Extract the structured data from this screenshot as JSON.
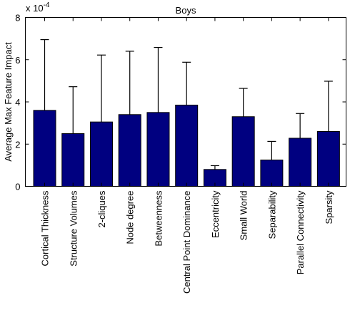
{
  "chart_data": {
    "type": "bar",
    "title": "Boys",
    "ylabel": "Average Max Feature Impact",
    "xlabel": "",
    "exponent_label_base": "x 10",
    "exponent_label_power": "-4",
    "ylim": [
      0,
      8
    ],
    "yticks": [
      "0",
      "2",
      "4",
      "6",
      "8"
    ],
    "grid": false,
    "bar_color": "#000080",
    "categories": [
      "Cortical Thickness",
      "Structure Volumes",
      "2-cliques",
      "Node degree",
      "Betweenness",
      "Central Point Dominance",
      "Eccentricity",
      "Small World",
      "Separability",
      "Parallel Connectivity",
      "Sparsity"
    ],
    "values": [
      3.6,
      2.5,
      3.05,
      3.4,
      3.5,
      3.85,
      0.8,
      3.3,
      1.25,
      2.28,
      2.6
    ],
    "error_upper": [
      6.95,
      4.72,
      6.22,
      6.4,
      6.58,
      5.88,
      0.98,
      4.64,
      2.13,
      3.45,
      4.98
    ],
    "scale_note": "values are in units of 10^-4"
  }
}
